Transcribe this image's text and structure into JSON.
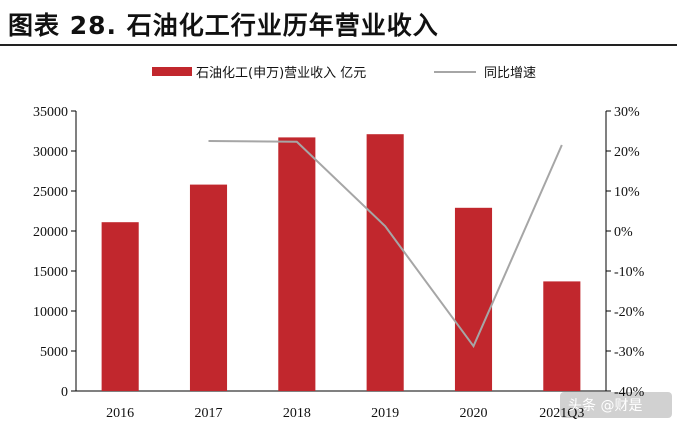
{
  "title": "图表 28. 石油化工行业历年营业收入",
  "chart_data": {
    "type": "bar",
    "title": "",
    "categories": [
      "2016",
      "2017",
      "2018",
      "2019",
      "2020",
      "2021Q3"
    ],
    "series": [
      {
        "name": "石油化工(申万)营业收入 亿元",
        "type": "bar",
        "axis": "left",
        "color": "#c1272d",
        "values": [
          21100,
          25800,
          31700,
          32100,
          22900,
          13700
        ]
      },
      {
        "name": "同比增速",
        "type": "line",
        "axis": "right",
        "color": "#a6a6a6",
        "values": [
          null,
          22.5,
          22.3,
          1.2,
          -28.8,
          21.5
        ]
      }
    ],
    "y_left": {
      "min": 0,
      "max": 35000,
      "ticks": [
        "0",
        "5000",
        "10000",
        "15000",
        "20000",
        "25000",
        "30000",
        "35000"
      ]
    },
    "y_right": {
      "min": -40,
      "max": 30,
      "ticks": [
        "-40%",
        "-30%",
        "-20%",
        "-10%",
        "0%",
        "10%",
        "20%",
        "30%"
      ]
    },
    "legend_position": "top-center",
    "grid": false
  },
  "watermark": "头条 @财是"
}
